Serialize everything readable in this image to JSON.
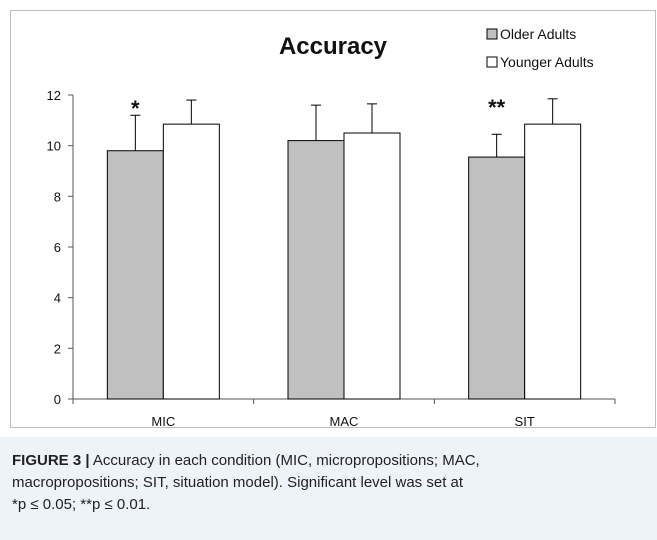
{
  "chart_data": {
    "type": "bar",
    "title": "Accuracy",
    "categories": [
      "MIC",
      "MAC",
      "SIT"
    ],
    "series": [
      {
        "name": "Older Adults",
        "values": [
          9.8,
          10.2,
          9.55
        ],
        "errors": [
          1.4,
          1.4,
          0.9
        ],
        "color": "#c0c0c0"
      },
      {
        "name": "Younger Adults",
        "values": [
          10.85,
          10.5,
          10.85
        ],
        "errors": [
          0.95,
          1.15,
          1.0
        ],
        "color": "#ffffff"
      }
    ],
    "significance": [
      "*",
      "",
      "**"
    ],
    "ylim": [
      0,
      12
    ],
    "yticks": [
      0,
      2,
      4,
      6,
      8,
      10,
      12
    ],
    "grid": false,
    "legend": "top-right"
  },
  "caption": {
    "label": "FIGURE 3 |",
    "line1": " Accuracy in each condition (MIC, micropropositions; MAC,",
    "line2": "macropropositions; SIT, situation model). Significant level was set at",
    "line3": "*p ≤ 0.05; **p ≤ 0.01."
  }
}
